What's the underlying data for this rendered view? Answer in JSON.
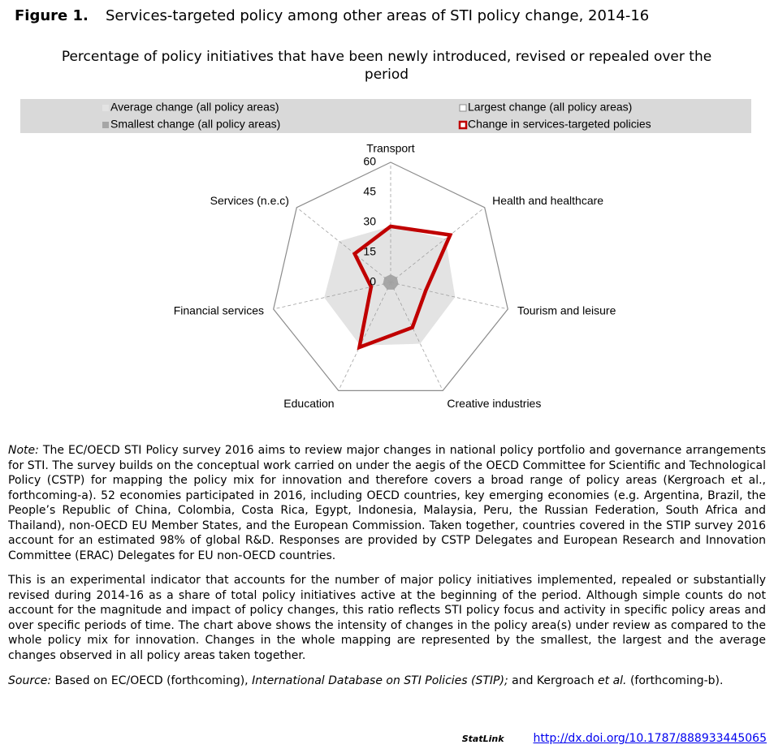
{
  "chart_data": {
    "type": "radar",
    "title_label": "Figure 1.",
    "title": "Services-targeted policy among other areas of STI policy change, 2014-16",
    "subtitle": "Percentage of policy initiatives that have been newly introduced, revised or repealed over the period",
    "categories": [
      "Transport",
      "Health and healthcare",
      "Tourism and leisure",
      "Creative industries",
      "Education",
      "Financial services",
      "Services (n.e.c)"
    ],
    "rlim": [
      0,
      60
    ],
    "rticks": [
      0,
      15,
      30,
      45,
      60
    ],
    "series": [
      {
        "name": "Average change (all policy areas)",
        "color": "#e3e3e3",
        "fill": true,
        "values": [
          28,
          35,
          33,
          34,
          35,
          34,
          33
        ]
      },
      {
        "name": "Largest change (all policy areas)",
        "color": "#ffffff",
        "stroke": "#8c8c8c",
        "fill": true,
        "values": [
          60,
          60,
          60,
          60,
          60,
          60,
          60
        ]
      },
      {
        "name": "Smallest change (all policy areas)",
        "color": "#a6a6a6",
        "fill": true,
        "values": [
          4,
          4,
          4,
          4,
          4,
          4,
          4
        ]
      },
      {
        "name": "Change in services-targeted policies",
        "color": "#c00000",
        "fill": false,
        "values": [
          28,
          38,
          18,
          25,
          36,
          10,
          23
        ]
      }
    ]
  },
  "note": {
    "label": "Note:",
    "text": "The EC/OECD STI Policy survey 2016 aims to review major changes in national policy portfolio and governance arrangements for STI. The survey builds on the conceptual work carried on under the aegis of the OECD Committee for Scientific and Technological Policy (CSTP) for mapping the policy mix for innovation and therefore covers a broad range of policy areas (Kergroach et al., forthcoming-a). 52 economies participated in 2016, including OECD countries, key emerging economies (e.g. Argentina, Brazil, the People’s Republic of China, Colombia, Costa Rica, Egypt, Indonesia, Malaysia, Peru, the Russian Federation, South Africa and Thailand), non-OECD EU Member States, and the European Commission. Taken together, countries covered in the STIP survey 2016 account for an estimated 98% of global R&D. Responses are provided by CSTP Delegates and European Research and Innovation Committee (ERAC) Delegates for EU non-OECD countries."
  },
  "description": "This is an experimental indicator that accounts for the number of major policy initiatives implemented, repealed or substantially revised during 2014-16 as a share of total policy initiatives active at the beginning of the period. Although simple counts do not account for the magnitude and impact of policy changes, this ratio reflects STI policy focus and activity in specific policy areas and over specific periods of time. The chart above shows the intensity of changes in the policy area(s) under review as compared to the whole policy mix for innovation. Changes in the whole mapping are represented by the smallest, the largest and the average changes observed in all policy areas taken together.",
  "source": [
    {
      "text": "Source:",
      "italic": true
    },
    {
      "text": " Based on EC/OECD (forthcoming), ",
      "italic": false
    },
    {
      "text": "International Database on STI Policies (STIP);",
      "italic": true
    },
    {
      "text": " and Kergroach ",
      "italic": false
    },
    {
      "text": "et al.",
      "italic": true
    },
    {
      "text": " (forthcoming-b).",
      "italic": false
    }
  ],
  "statlink": {
    "label": "StatLink",
    "url": "http://dx.doi.org/10.1787/888933445065"
  }
}
